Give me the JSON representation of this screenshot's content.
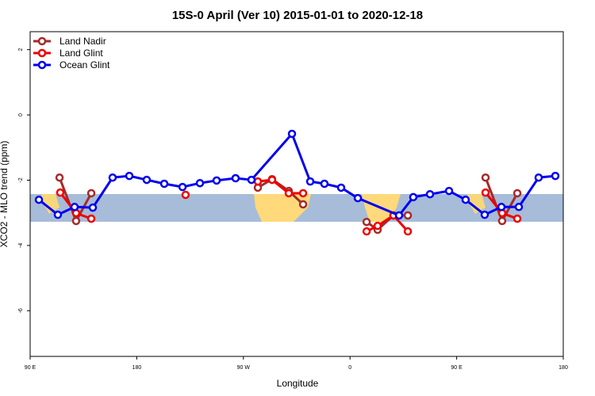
{
  "chart_data": {
    "type": "line",
    "title": "15S-0 April (Ver 10)   2015-01-01 to 2020-12-18",
    "x_label": "Longitude",
    "y_label": "XCO2 - MLO trend (ppm)",
    "xlim": [
      90,
      540
    ],
    "xticks": [
      {
        "value": 90,
        "label": "90 E"
      },
      180,
      {
        "value": 270,
        "label": "90 W"
      },
      {
        "value": 360,
        "label": "0"
      },
      {
        "value": 450,
        "label": "90 E"
      },
      {
        "value": 540,
        "label": "180"
      }
    ],
    "ylim": [
      -7.4,
      2.55
    ],
    "yticks": [
      2,
      0,
      -2,
      -4,
      -6
    ],
    "legend": "top-left",
    "series": [
      {
        "name": "Land Nadir",
        "color": "#a52a2a",
        "x": [
          114.8,
          128.8,
          141.6,
          null,
          282.2,
          294.2,
          308.3,
          320.4,
          null,
          374.0,
          383.3,
          396.7,
          408.8,
          null,
          474.4,
          488.4,
          501.2
        ],
        "values": [
          -1.92,
          -3.25,
          -2.4,
          null,
          -2.23,
          -1.97,
          -2.33,
          -2.74,
          null,
          -3.28,
          -3.52,
          -3.08,
          -3.08,
          null,
          -1.92,
          -3.25,
          -2.4
        ]
      },
      {
        "name": "Land Glint",
        "color": "#ee0000",
        "x": [
          115.4,
          128.8,
          141.6,
          null,
          221.2,
          null,
          282.2,
          294.2,
          308.3,
          320.4,
          null,
          374.0,
          383.3,
          396.7,
          408.8,
          null,
          474.4,
          488.4,
          501.2
        ],
        "values": [
          -2.38,
          -3.01,
          -3.18,
          null,
          -2.45,
          null,
          -2.04,
          -1.99,
          -2.4,
          -2.4,
          null,
          -3.57,
          -3.4,
          -3.08,
          -3.57,
          null,
          -2.38,
          -3.01,
          -3.18
        ]
      },
      {
        "name": "Ocean Glint",
        "color": "#0000ee",
        "x": [
          97.4,
          113.4,
          127.5,
          142.9,
          159.6,
          173.7,
          188.4,
          203.2,
          218.6,
          233.3,
          247.4,
          263.4,
          276.8,
          311.0,
          326.4,
          338.4,
          352.5,
          366.6,
          401.4,
          413.4,
          427.5,
          443.6,
          457.6,
          473.7,
          487.8,
          502.5,
          519.2,
          533.3
        ],
        "values": [
          -2.6,
          -3.06,
          -2.82,
          -2.84,
          -1.92,
          -1.87,
          -1.99,
          -2.11,
          -2.21,
          -2.09,
          -2.01,
          -1.94,
          -1.99,
          -0.58,
          -2.04,
          -2.11,
          -2.23,
          -2.55,
          -3.08,
          -2.52,
          -2.43,
          -2.33,
          -2.6,
          -3.06,
          -2.82,
          -2.82,
          -1.92,
          -1.87
        ]
      }
    ]
  }
}
